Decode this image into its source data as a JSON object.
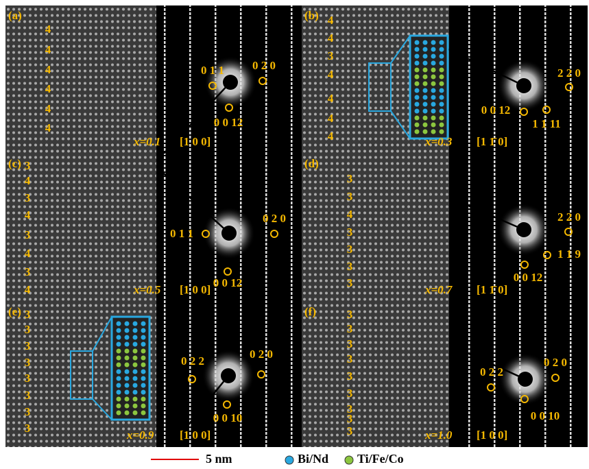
{
  "panels": [
    {
      "label": "(a)",
      "layers": [
        "4",
        "4",
        "4",
        "4",
        "4",
        "4"
      ],
      "composition": "x=0.1",
      "zone_axis": "[1 0 0]",
      "spots": [
        "0 1 1",
        "0 2 0",
        "0 0 12"
      ]
    },
    {
      "label": "(b)",
      "layers": [
        "4",
        "4",
        "3",
        "4",
        "4",
        "4",
        "4"
      ],
      "composition": "x=0.3",
      "zone_axis": "[1 1̄ 0]",
      "spots": [
        "2 2 0",
        "0 0 12",
        "1 1 11"
      ]
    },
    {
      "label": "(c)",
      "layers": [
        "3",
        "4",
        "3",
        "4",
        "3",
        "4",
        "3",
        "4"
      ],
      "composition": "x=0.5",
      "zone_axis": "[1 0 0]",
      "spots": [
        "0 1 1",
        "0 2 0",
        "0 0 12"
      ]
    },
    {
      "label": "(d)",
      "layers": [
        "3",
        "3",
        "4",
        "3",
        "3",
        "3",
        "3"
      ],
      "composition": "x=0.7",
      "zone_axis": "[1 1̄ 0]",
      "spots": [
        "2 2 0",
        "1 1 9",
        "0 0 12"
      ]
    },
    {
      "label": "(e)",
      "layers": [
        "3",
        "3",
        "3",
        "3",
        "3",
        "3",
        "3",
        "3"
      ],
      "composition": "x=0.9",
      "zone_axis": "[1 0 0]",
      "spots": [
        "0 2 2",
        "0 2 0",
        "0 0 10"
      ]
    },
    {
      "label": "(f)",
      "layers": [
        "3",
        "3",
        "3",
        "3",
        "3",
        "3",
        "3",
        "3",
        "3"
      ],
      "composition": "x=1.0",
      "zone_axis": "[1 0 0]",
      "spots": [
        "0 2 2",
        "0 2 0",
        "0 0 10"
      ]
    }
  ],
  "legend": {
    "scale_bar": "5 nm",
    "atoms": [
      "Bi/Nd",
      "Ti/Fe/Co"
    ]
  }
}
